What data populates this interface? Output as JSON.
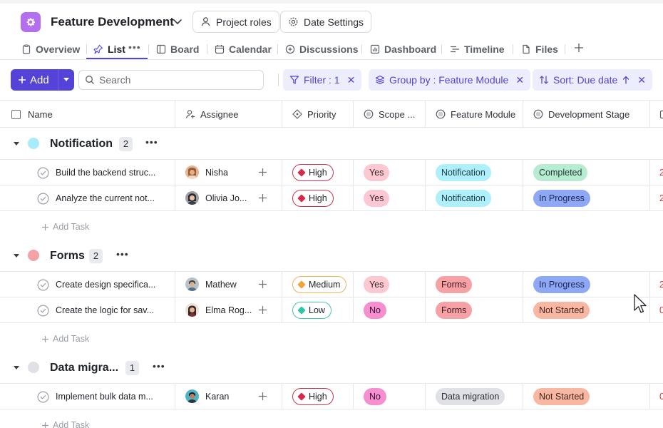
{
  "header": {
    "project_title": "Feature Development",
    "project_roles_label": "Project roles",
    "date_settings_label": "Date Settings"
  },
  "tabs": [
    {
      "label": "Overview",
      "icon": "clipboard-icon"
    },
    {
      "label": "List",
      "icon": "pin-icon",
      "active": true
    },
    {
      "label": "Board",
      "icon": "board-icon"
    },
    {
      "label": "Calendar",
      "icon": "calendar-icon"
    },
    {
      "label": "Discussions",
      "icon": "discussion-icon"
    },
    {
      "label": "Dashboard",
      "icon": "dashboard-icon"
    },
    {
      "label": "Timeline",
      "icon": "timeline-icon"
    },
    {
      "label": "Files",
      "icon": "files-icon"
    }
  ],
  "toolbar": {
    "add_label": "Add",
    "search_placeholder": "Search",
    "filter_label": "Filter : 1",
    "group_label": "Group by : Feature Module",
    "sort_label": "Sort: Due date"
  },
  "columns": {
    "name": "Name",
    "assignee": "Assignee",
    "priority": "Priority",
    "scope": "Scope ...",
    "feature_module": "Feature Module",
    "development_stage": "Development Stage"
  },
  "add_task_label": "Add Task",
  "colors": {
    "accent": "#5443d8",
    "priority_high": "#d62a4d",
    "priority_medium": "#f2a33a",
    "priority_low": "#2ec4a8"
  },
  "groups": [
    {
      "title": "Notification",
      "count": "2",
      "dot_color": "#a8ecfb",
      "tasks": [
        {
          "name": "Build the backend struc...",
          "assignee": "Nisha",
          "priority": "High",
          "scope": "Yes",
          "module": "Notification",
          "stage": "Completed",
          "overflow": "2"
        },
        {
          "name": "Analyze the current not...",
          "assignee": "Olivia Jo...",
          "priority": "High",
          "scope": "Yes",
          "module": "Notification",
          "stage": "In Progress",
          "overflow": "2"
        }
      ]
    },
    {
      "title": "Forms",
      "count": "2",
      "dot_color": "#f5a2a6",
      "tasks": [
        {
          "name": "Create design specifica...",
          "assignee": "Mathew",
          "priority": "Medium",
          "scope": "Yes",
          "module": "Forms",
          "stage": "In Progress",
          "overflow": "2"
        },
        {
          "name": "Create the logic for sav...",
          "assignee": "Elma Rog...",
          "priority": "Low",
          "scope": "No",
          "module": "Forms",
          "stage": "Not Started",
          "overflow": "0"
        }
      ]
    },
    {
      "title": "Data migra...",
      "count": "1",
      "dot_color": "#dfe1e6",
      "tasks": [
        {
          "name": "Implement bulk data m...",
          "assignee": "Karan",
          "priority": "High",
          "scope": "No",
          "module": "Data migration",
          "stage": "Not Started",
          "overflow": "0"
        }
      ]
    }
  ]
}
